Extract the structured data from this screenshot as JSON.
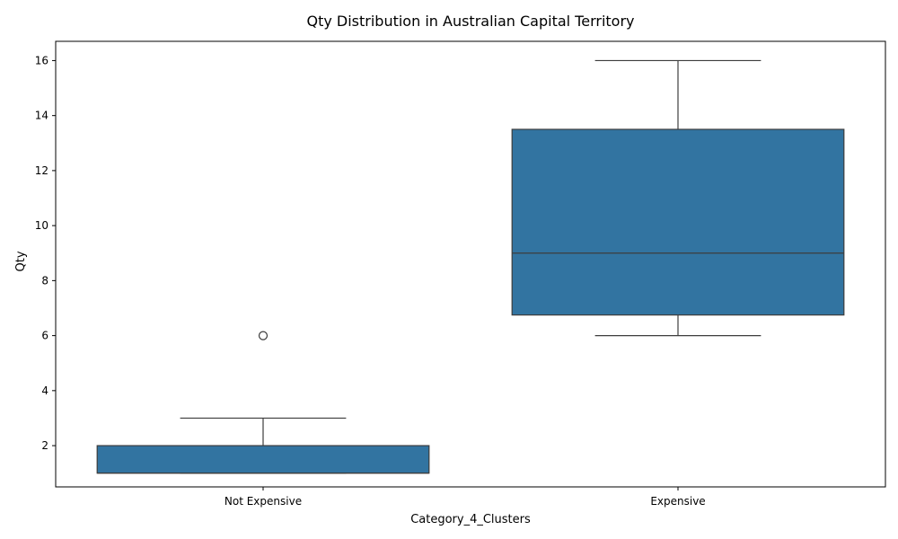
{
  "chart_data": {
    "type": "box",
    "title": "Qty Distribution in Australian Capital Territory",
    "xlabel": "Category_4_Clusters",
    "ylabel": "Qty",
    "ylim": [
      0.5,
      16.7
    ],
    "yticks": [
      2,
      4,
      6,
      8,
      10,
      12,
      14,
      16
    ],
    "grid": false,
    "color": "#3274a1",
    "edge_color": "#3d3d3d",
    "categories": [
      "Not Expensive",
      "Expensive"
    ],
    "boxes": [
      {
        "category": "Not Expensive",
        "whisker_low": 1,
        "q1": 1,
        "median": 1,
        "q3": 2,
        "whisker_high": 3,
        "outliers": [
          6
        ]
      },
      {
        "category": "Expensive",
        "whisker_low": 6,
        "q1": 6.75,
        "median": 9,
        "q3": 13.5,
        "whisker_high": 16,
        "outliers": []
      }
    ]
  }
}
